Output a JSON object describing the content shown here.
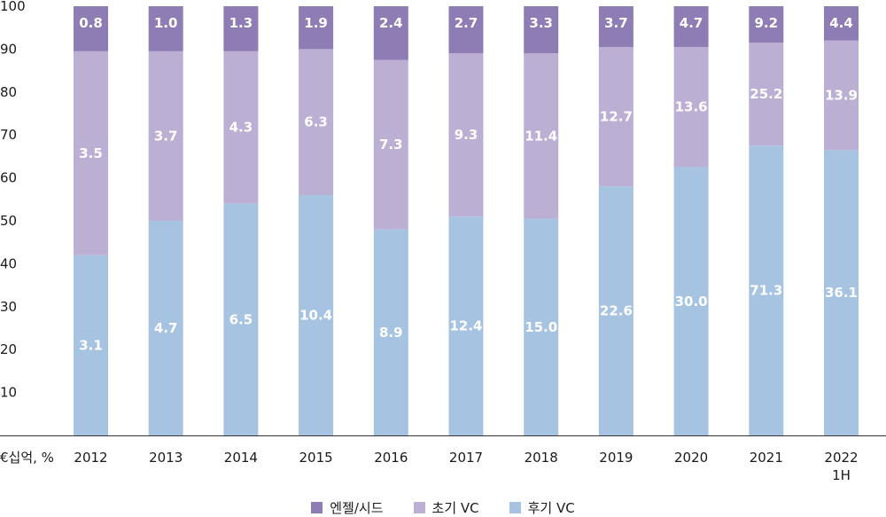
{
  "chart_data": {
    "type": "bar",
    "stacked": true,
    "categories": [
      "2012",
      "2013",
      "2014",
      "2015",
      "2016",
      "2017",
      "2018",
      "2019",
      "2020",
      "2021",
      "2022 1H"
    ],
    "unit_label": "€십억, %",
    "ylim": [
      0,
      100
    ],
    "yticks": [
      "10",
      "20",
      "30",
      "40",
      "50",
      "60",
      "70",
      "80",
      "90",
      "100"
    ],
    "series": [
      {
        "name": "후기 VC",
        "color": "#a7c3e2",
        "share": [
          42,
          50,
          54,
          56,
          48,
          51,
          50.5,
          58,
          62.5,
          67.5,
          66.5
        ],
        "labels": [
          "3.1",
          "4.7",
          "6.5",
          "10.4",
          "8.9",
          "12.4",
          "15.0",
          "22.6",
          "30.0",
          "71.3",
          "36.1"
        ]
      },
      {
        "name": "초기 VC",
        "color": "#bbb0d3",
        "share": [
          47.5,
          39.5,
          35.5,
          34,
          39.5,
          38,
          38.5,
          32.5,
          28,
          24,
          25.5
        ],
        "labels": [
          "3.5",
          "3.7",
          "4.3",
          "6.3",
          "7.3",
          "9.3",
          "11.4",
          "12.7",
          "13.6",
          "25.2",
          "13.9"
        ]
      },
      {
        "name": "엔젤/시드",
        "color": "#8d7db4",
        "share": [
          10.5,
          10.5,
          10.5,
          10,
          12.5,
          11,
          11,
          9.5,
          9.5,
          8.5,
          8
        ],
        "labels": [
          "0.8",
          "1.0",
          "1.3",
          "1.9",
          "2.4",
          "2.7",
          "3.3",
          "3.7",
          "4.7",
          "9.2",
          "4.4"
        ]
      }
    ],
    "legend_order": [
      2,
      1,
      0
    ],
    "legend_position": "bottom"
  }
}
